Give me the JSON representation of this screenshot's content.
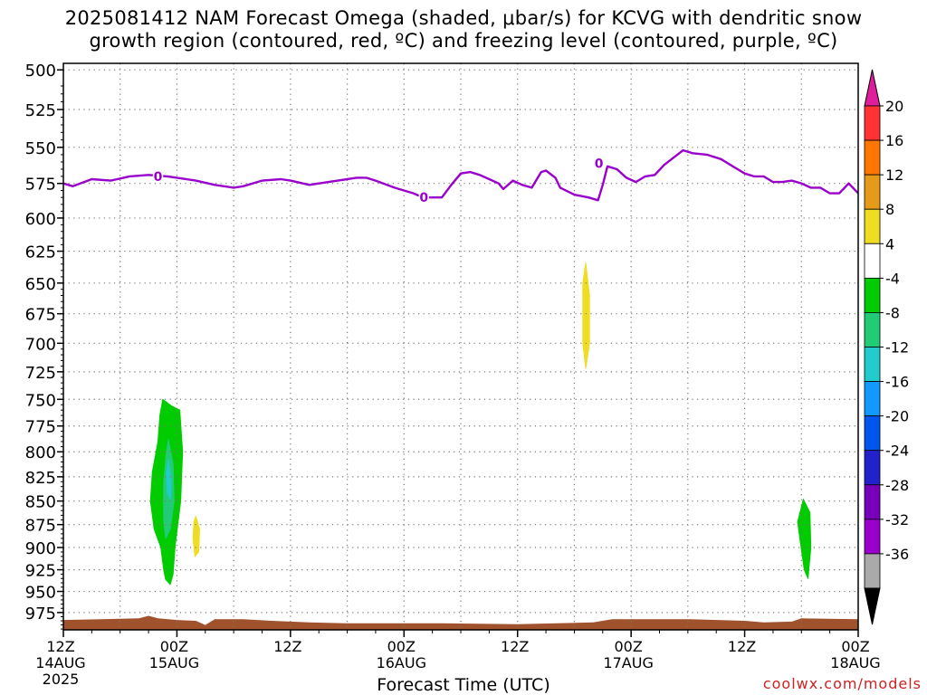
{
  "title_line1": "2025081412 NAM Forecast Omega (shaded, μbar/s) for KCVG with dendritic snow",
  "title_line2": "growth region (contoured, red, ºC) and freezing level (contoured, purple, ºC)",
  "xlabel": "Forecast Time (UTC)",
  "credit": "coolwx.com/models",
  "chart_data": {
    "type": "heatmap",
    "title": "2025081412 NAM Forecast Omega (shaded, μbar/s) for KCVG with dendritic snow growth region (contoured, red, ºC) and freezing level (contoured, purple, ºC)",
    "xlabel": "Forecast Time (UTC)",
    "ylabel": "",
    "x_unit": "forecast hours from 2025081412",
    "xlim": [
      0,
      84
    ],
    "y_unit": "hPa",
    "ylim": [
      996,
      496
    ],
    "y_scale": "log",
    "grid": true,
    "y_ticks": [
      500,
      525,
      550,
      575,
      600,
      625,
      650,
      675,
      700,
      725,
      750,
      775,
      800,
      825,
      850,
      875,
      900,
      925,
      950,
      975
    ],
    "x_ticks": [
      {
        "hour": 0,
        "label": "12Z",
        "sub": "14AUG",
        "sub2": "2025"
      },
      {
        "hour": 12,
        "label": "00Z",
        "sub": "15AUG",
        "sub2": ""
      },
      {
        "hour": 24,
        "label": "12Z",
        "sub": "",
        "sub2": ""
      },
      {
        "hour": 36,
        "label": "00Z",
        "sub": "16AUG",
        "sub2": ""
      },
      {
        "hour": 48,
        "label": "12Z",
        "sub": "",
        "sub2": ""
      },
      {
        "hour": 60,
        "label": "00Z",
        "sub": "17AUG",
        "sub2": ""
      },
      {
        "hour": 72,
        "label": "12Z",
        "sub": "",
        "sub2": ""
      },
      {
        "hour": 84,
        "label": "00Z",
        "sub": "18AUG",
        "sub2": ""
      }
    ],
    "colorbar": {
      "labels": [
        "20",
        "16",
        "12",
        "8",
        "4",
        "-4",
        "-8",
        "-12",
        "-16",
        "-20",
        "-24",
        "-28",
        "-32",
        "-36"
      ],
      "colors": [
        "#e01e9c",
        "#ff3333",
        "#ff7700",
        "#e69a1a",
        "#eedd22",
        "#ffffff",
        "#00cc00",
        "#22cc77",
        "#22cccc",
        "#1199ff",
        "#0055ee",
        "#2222cc",
        "#7700bb",
        "#9900cc",
        "#aaaaaa",
        "#000000"
      ]
    },
    "freezing_level": {
      "label": "0",
      "color": "#9900cc",
      "points": [
        [
          0,
          575
        ],
        [
          1,
          577
        ],
        [
          3,
          572
        ],
        [
          5,
          573
        ],
        [
          7,
          570
        ],
        [
          9,
          569
        ],
        [
          11,
          570
        ],
        [
          12,
          571
        ],
        [
          14,
          573
        ],
        [
          16,
          576
        ],
        [
          18,
          578
        ],
        [
          19,
          577
        ],
        [
          21,
          573
        ],
        [
          23,
          572
        ],
        [
          24,
          573
        ],
        [
          26,
          576
        ],
        [
          27,
          575
        ],
        [
          29,
          573
        ],
        [
          31,
          571
        ],
        [
          32,
          571
        ],
        [
          33,
          573
        ],
        [
          35,
          578
        ],
        [
          37,
          582
        ],
        [
          38,
          585
        ],
        [
          40,
          585
        ],
        [
          41,
          576
        ],
        [
          42,
          568
        ],
        [
          43,
          567
        ],
        [
          44,
          569
        ],
        [
          45,
          572
        ],
        [
          46,
          575
        ],
        [
          46.5,
          579
        ],
        [
          47.5,
          573
        ],
        [
          48.5,
          576
        ],
        [
          49.5,
          578
        ],
        [
          50.5,
          567
        ],
        [
          51,
          566
        ],
        [
          52,
          571
        ],
        [
          52.5,
          578
        ],
        [
          54,
          583
        ],
        [
          55.5,
          585
        ],
        [
          56.5,
          587
        ],
        [
          57,
          576
        ],
        [
          57.5,
          563
        ],
        [
          58.5,
          565
        ],
        [
          59.5,
          571
        ],
        [
          60.5,
          574
        ],
        [
          61.5,
          570
        ],
        [
          62.5,
          569
        ],
        [
          63.5,
          562
        ],
        [
          64.5,
          557
        ],
        [
          65.5,
          552
        ],
        [
          66.5,
          554
        ],
        [
          68,
          555
        ],
        [
          69.5,
          558
        ],
        [
          71,
          564
        ],
        [
          72,
          568
        ],
        [
          73,
          570
        ],
        [
          74,
          570
        ],
        [
          75,
          574
        ],
        [
          76,
          574
        ],
        [
          77,
          573
        ],
        [
          78,
          575
        ],
        [
          79,
          578
        ],
        [
          80,
          578
        ],
        [
          81,
          582
        ],
        [
          82,
          582
        ],
        [
          83,
          575
        ],
        [
          84,
          582
        ]
      ],
      "label_positions": [
        [
          10,
          570
        ],
        [
          38.1,
          585
        ],
        [
          56.6,
          561
        ]
      ]
    },
    "shaded_regions": [
      {
        "value_range": "-8 to -4",
        "color": "#00cc00",
        "outline": [
          [
            10.5,
            750
          ],
          [
            11.4,
            756
          ],
          [
            12.3,
            760
          ],
          [
            12.6,
            800
          ],
          [
            12.4,
            850
          ],
          [
            11.8,
            900
          ],
          [
            11.6,
            930
          ],
          [
            11.3,
            942
          ],
          [
            10.8,
            936
          ],
          [
            10.6,
            925
          ],
          [
            10.3,
            900
          ],
          [
            9.6,
            880
          ],
          [
            9.2,
            850
          ],
          [
            9.4,
            820
          ],
          [
            10.0,
            790
          ],
          [
            10.2,
            765
          ]
        ]
      },
      {
        "value_range": "-12 to -8",
        "color": "#22cc77",
        "outline": [
          [
            11.1,
            788
          ],
          [
            11.6,
            812
          ],
          [
            11.7,
            850
          ],
          [
            11.3,
            880
          ],
          [
            10.8,
            890
          ],
          [
            10.6,
            870
          ],
          [
            10.6,
            830
          ],
          [
            10.9,
            800
          ]
        ]
      },
      {
        "value_range": "-16 to -12",
        "color": "#22cccc",
        "outline": [
          [
            11.1,
            808
          ],
          [
            11.4,
            830
          ],
          [
            11.3,
            848
          ],
          [
            11.0,
            842
          ],
          [
            10.9,
            822
          ]
        ]
      },
      {
        "value_range": "4 to 8",
        "color": "#eedd22",
        "outline": [
          [
            14.0,
            866
          ],
          [
            14.4,
            880
          ],
          [
            14.3,
            905
          ],
          [
            13.9,
            910
          ],
          [
            13.7,
            890
          ],
          [
            13.8,
            872
          ]
        ]
      },
      {
        "value_range": "4 to 8",
        "color": "#eedd22",
        "outline": [
          [
            55.2,
            634
          ],
          [
            55.6,
            660
          ],
          [
            55.6,
            700
          ],
          [
            55.2,
            722
          ],
          [
            54.9,
            700
          ],
          [
            54.9,
            650
          ]
        ]
      },
      {
        "value_range": "-8 to -4",
        "color": "#00cc00",
        "outline": [
          [
            78.2,
            848
          ],
          [
            78.9,
            862
          ],
          [
            79.0,
            900
          ],
          [
            78.7,
            935
          ],
          [
            78.3,
            925
          ],
          [
            77.9,
            895
          ],
          [
            77.6,
            872
          ]
        ]
      }
    ],
    "surface": {
      "color": "#a0522d",
      "points": [
        [
          0,
          984
        ],
        [
          4,
          983
        ],
        [
          8,
          982
        ],
        [
          9,
          979
        ],
        [
          10,
          982
        ],
        [
          12,
          984
        ],
        [
          14,
          985
        ],
        [
          15,
          990
        ],
        [
          16,
          983
        ],
        [
          19,
          983
        ],
        [
          22,
          985
        ],
        [
          26,
          987
        ],
        [
          30,
          988
        ],
        [
          40,
          988
        ],
        [
          48,
          989
        ],
        [
          56,
          987
        ],
        [
          58,
          983
        ],
        [
          66,
          983
        ],
        [
          72,
          985
        ],
        [
          74,
          987
        ],
        [
          77,
          986
        ],
        [
          78,
          982
        ],
        [
          84,
          983
        ]
      ]
    }
  }
}
